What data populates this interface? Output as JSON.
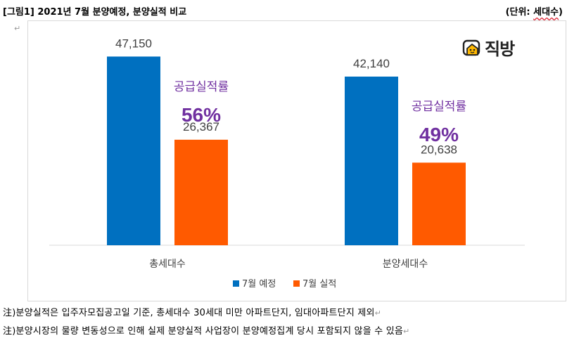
{
  "header": {
    "title": "[그림1] 2021년 7월 분양예정, 분양실적 비교",
    "unit_prefix": "(단위: ",
    "unit_word": "세대수",
    "unit_suffix": ")"
  },
  "logo": {
    "text": "직방"
  },
  "chart_data": {
    "type": "bar",
    "categories": [
      "총세대수",
      "분양세대수"
    ],
    "series": [
      {
        "name": "7월 예정",
        "values": [
          47150,
          42140
        ],
        "color": "#0070c0"
      },
      {
        "name": "7월 실적",
        "values": [
          26367,
          20638
        ],
        "color": "#ff5a00"
      }
    ],
    "value_labels": [
      [
        "47,150",
        "26,367"
      ],
      [
        "42,140",
        "20,638"
      ]
    ],
    "annotations": [
      {
        "label": "공급실적률",
        "value": "56%"
      },
      {
        "label": "공급실적률",
        "value": "49%"
      }
    ],
    "annotation_color": "#7030a0",
    "ylim": [
      0,
      52500
    ],
    "grid": false,
    "legend_position": "bottom"
  },
  "notes": [
    "注)분양실적은 입주자모집공고일 기준, 총세대수 30세대 미만 아파트단지, 임대아파트단지 제외",
    "注)분양시장의 물량 변동성으로 인해 실제 분양실적 사업장이 분양예정집계 당시 포함되지 않을 수 있음"
  ]
}
